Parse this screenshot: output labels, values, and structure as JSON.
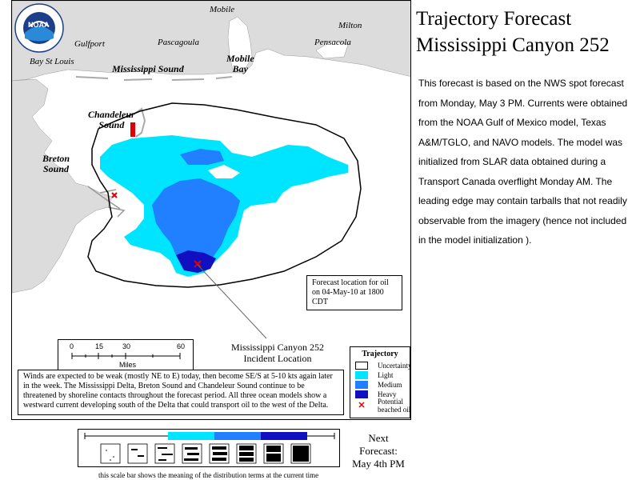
{
  "title": {
    "line1": "Trajectory Forecast",
    "line2": "Mississippi Canyon 252"
  },
  "description": "This forecast is based on the NWS spot forecast from Monday, May 3 PM. Currents were obtained from the NOAA Gulf of Mexico model, Texas A&M/TGLO, and NAVO models. The model was initialized from SLAR data obtained during a Transport Canada overflight Monday AM. The leading edge may contain tarballs that not readily observable from the imagery (hence not included in the model initialization ).",
  "map": {
    "places": {
      "mobile_city": "Mobile",
      "milton": "Milton",
      "gulfport": "Gulfport",
      "pascagoula": "Pascagoula",
      "pensacola": "Pensacola",
      "bay_st_louis": "Bay St Louis",
      "mississippi_sound": "Mississippi Sound",
      "mobile_bay_1": "Mobile",
      "mobile_bay_2": "Bay",
      "chandeleur_1": "Chandeleur",
      "chandeleur_2": "Sound",
      "breton_1": "Breton",
      "breton_2": "Sound"
    },
    "forecast_location": {
      "line1": "Forecast location for oil",
      "line2": "on 04-May-10 at 1800 CDT"
    },
    "incident": {
      "line1": "Mississippi Canyon 252",
      "line2": "Incident Location"
    },
    "scale": {
      "ticks": [
        "0",
        "15",
        "30",
        "60"
      ],
      "unit": "Miles"
    },
    "winds_note": "Winds are expected to be weak (mostly NE to E) today, then become SE/S at 5-10 kts again later in the week. The Mississippi Delta, Breton Sound and Chandeleur Sound continue to be threatened by shoreline contacts throughout the forecast period. All three ocean models show a westward current developing south of the Delta that could transport oil to the west of the Delta.",
    "legend": {
      "title": "Trajectory",
      "items": [
        {
          "label": "Uncertainty",
          "color": "#ffffff"
        },
        {
          "label": "Light",
          "color": "#00e5ff"
        },
        {
          "label": "Medium",
          "color": "#2080ff"
        },
        {
          "label": "Heavy",
          "color": "#1010c0"
        }
      ],
      "beached_line1": "Potential",
      "beached_line2": "beached oil",
      "beached_color": "#e00000"
    },
    "colors": {
      "land": "#dcdcdc",
      "water": "#ffffff",
      "light": "#00e5ff",
      "medium": "#2080ff",
      "heavy": "#1010c0"
    }
  },
  "distribution_bar": {
    "caption": "this scale bar shows the meaning of the distribution terms at the current time"
  },
  "next_forecast": {
    "line1": "Next",
    "line2": "Forecast:",
    "line3": "May 4th PM"
  },
  "logo": {
    "text": "NOAA"
  }
}
